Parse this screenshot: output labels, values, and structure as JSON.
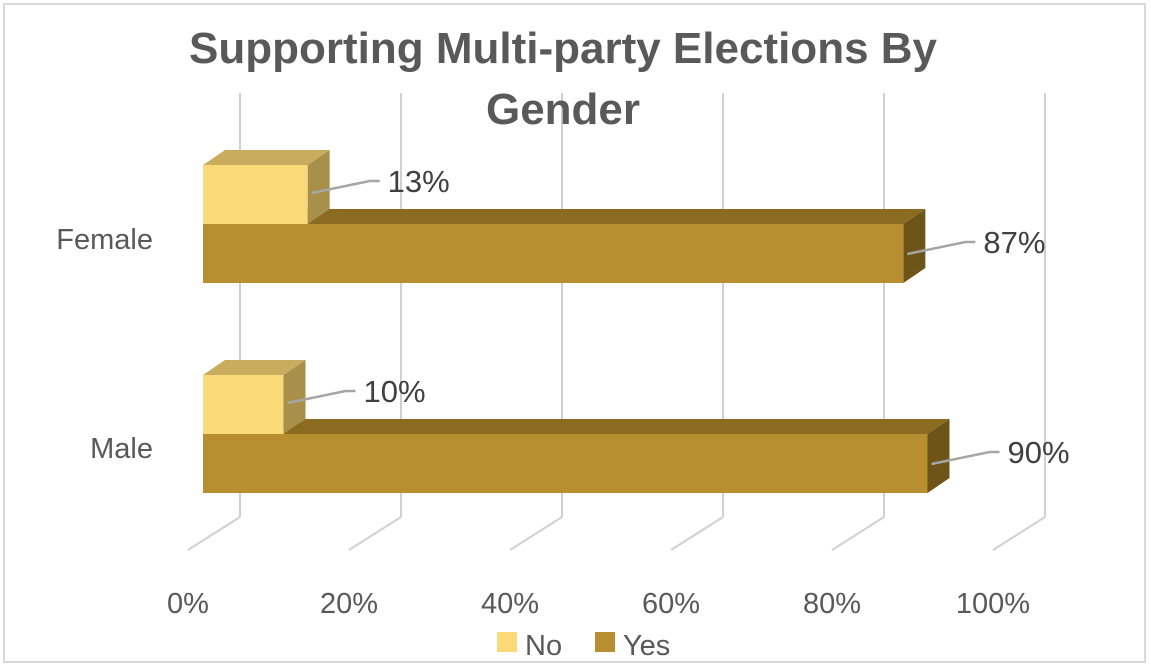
{
  "chart_data": {
    "type": "bar",
    "orientation": "horizontal",
    "style": "3d-clustered",
    "title": "Supporting Multi-party Elections By Gender",
    "title_lines": [
      "Supporting Multi-party Elections By",
      "Gender"
    ],
    "categories": [
      "Female",
      "Male"
    ],
    "series": [
      {
        "name": "No",
        "values": [
          13,
          10
        ],
        "labels": [
          "13%",
          "10%"
        ],
        "color": "#F9D978",
        "top_color": "#C9AC5E",
        "side_color": "#A8904A"
      },
      {
        "name": "Yes",
        "values": [
          87,
          90
        ],
        "labels": [
          "87%",
          "90%"
        ],
        "color": "#B78F30",
        "top_color": "#8B6B20",
        "side_color": "#6E5418"
      }
    ],
    "xlim": [
      0,
      100
    ],
    "xticks": [
      "0%",
      "20%",
      "40%",
      "60%",
      "80%",
      "100%"
    ],
    "xlabel": "",
    "ylabel": "",
    "grid": true,
    "legend": "bottom"
  },
  "colors": {
    "grid": "#d0d0d0",
    "leader": "#a6a6a6",
    "text": "#595959"
  }
}
